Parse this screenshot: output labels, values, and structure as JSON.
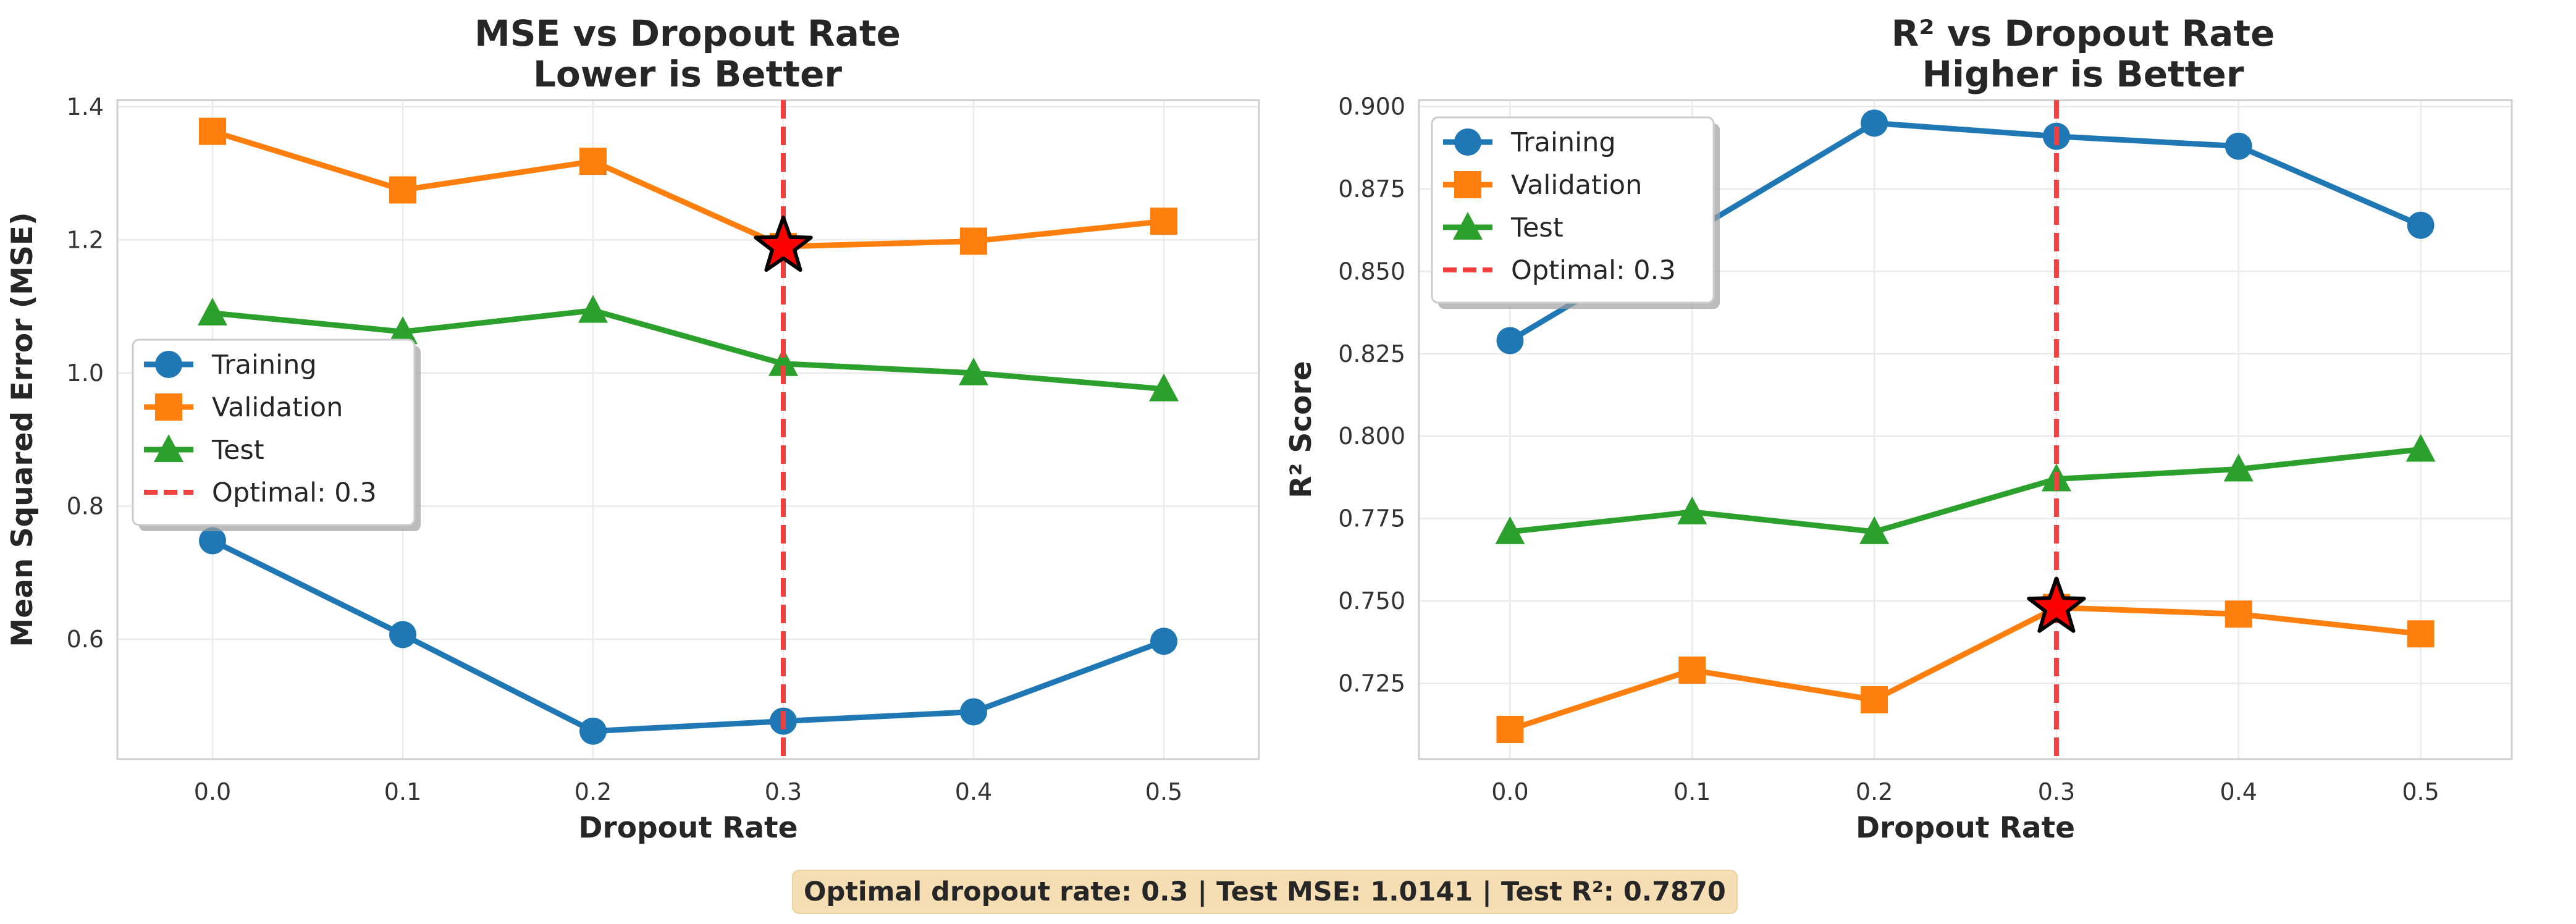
{
  "colors": {
    "training": "#1f77b4",
    "validation": "#ff7f0e",
    "test": "#2ca02c",
    "optimal_line": "#f04040",
    "star_fill": "#ff0000",
    "summary_bg": "#f5deb3"
  },
  "chart_data": [
    {
      "type": "line",
      "title": "MSE vs Dropout Rate",
      "subtitle": "Lower is Better",
      "xlabel": "Dropout Rate",
      "ylabel": "Mean Squared Error (MSE)",
      "x": [
        0.0,
        0.1,
        0.2,
        0.3,
        0.4,
        0.5
      ],
      "x_ticks": [
        "0.0",
        "0.1",
        "0.2",
        "0.3",
        "0.4",
        "0.5"
      ],
      "xlim": [
        -0.05,
        0.55
      ],
      "ylim": [
        0.42,
        1.41
      ],
      "y_ticks": [
        "0.6",
        "0.8",
        "1.0",
        "1.2",
        "1.4"
      ],
      "grid": true,
      "legend_placement": "center-left",
      "series": [
        {
          "name": "Training",
          "marker": "circle",
          "values": [
            0.748,
            0.607,
            0.462,
            0.477,
            0.491,
            0.597
          ]
        },
        {
          "name": "Validation",
          "marker": "square",
          "values": [
            1.363,
            1.275,
            1.318,
            1.19,
            1.198,
            1.228
          ]
        },
        {
          "name": "Test",
          "marker": "triangle",
          "values": [
            1.09,
            1.062,
            1.094,
            1.014,
            1.0,
            0.976
          ]
        }
      ],
      "optimal": {
        "label": "Optimal: 0.3",
        "x": 0.3,
        "star_y": 1.19
      }
    },
    {
      "type": "line",
      "title": "R² vs Dropout Rate",
      "subtitle": "Higher is Better",
      "xlabel": "Dropout Rate",
      "ylabel": "R² Score",
      "x": [
        0.0,
        0.1,
        0.2,
        0.3,
        0.4,
        0.5
      ],
      "x_ticks": [
        "0.0",
        "0.1",
        "0.2",
        "0.3",
        "0.4",
        "0.5"
      ],
      "xlim": [
        -0.05,
        0.55
      ],
      "ylim": [
        0.702,
        0.902
      ],
      "y_ticks": [
        "0.725",
        "0.750",
        "0.775",
        "0.800",
        "0.825",
        "0.850",
        "0.875",
        "0.900"
      ],
      "grid": true,
      "legend_placement": "top-left",
      "series": [
        {
          "name": "Training",
          "marker": "circle",
          "values": [
            0.829,
            0.862,
            0.895,
            0.891,
            0.888,
            0.864
          ]
        },
        {
          "name": "Validation",
          "marker": "square",
          "values": [
            0.711,
            0.729,
            0.72,
            0.748,
            0.746,
            0.74
          ]
        },
        {
          "name": "Test",
          "marker": "triangle",
          "values": [
            0.771,
            0.777,
            0.771,
            0.787,
            0.79,
            0.796
          ]
        }
      ],
      "optimal": {
        "label": "Optimal: 0.3",
        "x": 0.3,
        "star_y": 0.748
      }
    }
  ],
  "summary": "Optimal dropout rate: 0.3 | Test MSE: 1.0141 | Test R²: 0.7870"
}
